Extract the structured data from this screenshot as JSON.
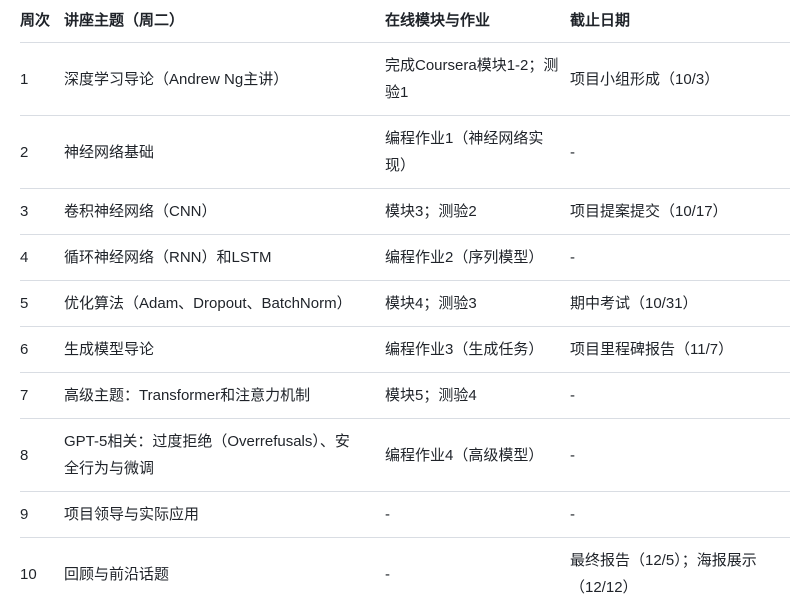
{
  "colors": {
    "text": "#1f2329",
    "row_divider": "#d9dde3",
    "background": "#ffffff"
  },
  "table": {
    "columns": [
      {
        "label": "周次"
      },
      {
        "label": "讲座主题（周二）"
      },
      {
        "label": "在线模块与作业"
      },
      {
        "label": "截止日期"
      }
    ],
    "rows": [
      {
        "week": "1",
        "topic": "深度学习导论（Andrew Ng主讲）",
        "modules": "完成Coursera模块1-2；测验1",
        "deadline": "项目小组形成（10/3）"
      },
      {
        "week": "2",
        "topic": "神经网络基础",
        "modules": "编程作业1（神经网络实现）",
        "deadline": "-"
      },
      {
        "week": "3",
        "topic": "卷积神经网络（CNN）",
        "modules": "模块3；测验2",
        "deadline": "项目提案提交（10/17）"
      },
      {
        "week": "4",
        "topic": "循环神经网络（RNN）和LSTM",
        "modules": "编程作业2（序列模型）",
        "deadline": "-"
      },
      {
        "week": "5",
        "topic": "优化算法（Adam、Dropout、BatchNorm）",
        "modules": "模块4；测验3",
        "deadline": "期中考试（10/31）"
      },
      {
        "week": "6",
        "topic": "生成模型导论",
        "modules": "编程作业3（生成任务）",
        "deadline": "项目里程碑报告（11/7）"
      },
      {
        "week": "7",
        "topic": "高级主题：Transformer和注意力机制",
        "modules": "模块5；测验4",
        "deadline": "-"
      },
      {
        "week": "8",
        "topic": "GPT-5相关：过度拒绝（Overrefusals）、安全行为与微调",
        "modules": "编程作业4（高级模型）",
        "deadline": "-"
      },
      {
        "week": "9",
        "topic": "项目领导与实际应用",
        "modules": "-",
        "deadline": "-"
      },
      {
        "week": "10",
        "topic": "回顾与前沿话题",
        "modules": "-",
        "deadline": "最终报告（12/5）；海报展示（12/12）"
      }
    ]
  }
}
